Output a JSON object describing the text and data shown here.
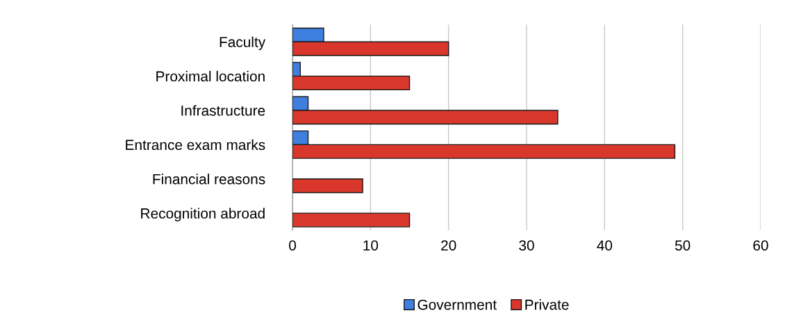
{
  "chart_data": {
    "type": "bar",
    "orientation": "horizontal",
    "categories": [
      "Faculty",
      "Proximal location",
      "Infrastructure",
      "Entrance exam marks",
      "Financial reasons",
      "Recognition abroad"
    ],
    "series": [
      {
        "name": "Government",
        "color": "#3f7fe0",
        "values": [
          4,
          1,
          2,
          2,
          null,
          null
        ]
      },
      {
        "name": "Private",
        "color": "#d9372b",
        "values": [
          20,
          15,
          34,
          49,
          9,
          15
        ]
      }
    ],
    "xlim": [
      0,
      60
    ],
    "xticks": [
      0,
      10,
      20,
      30,
      40,
      50,
      60
    ],
    "grid": "x",
    "legend": "bottom"
  }
}
